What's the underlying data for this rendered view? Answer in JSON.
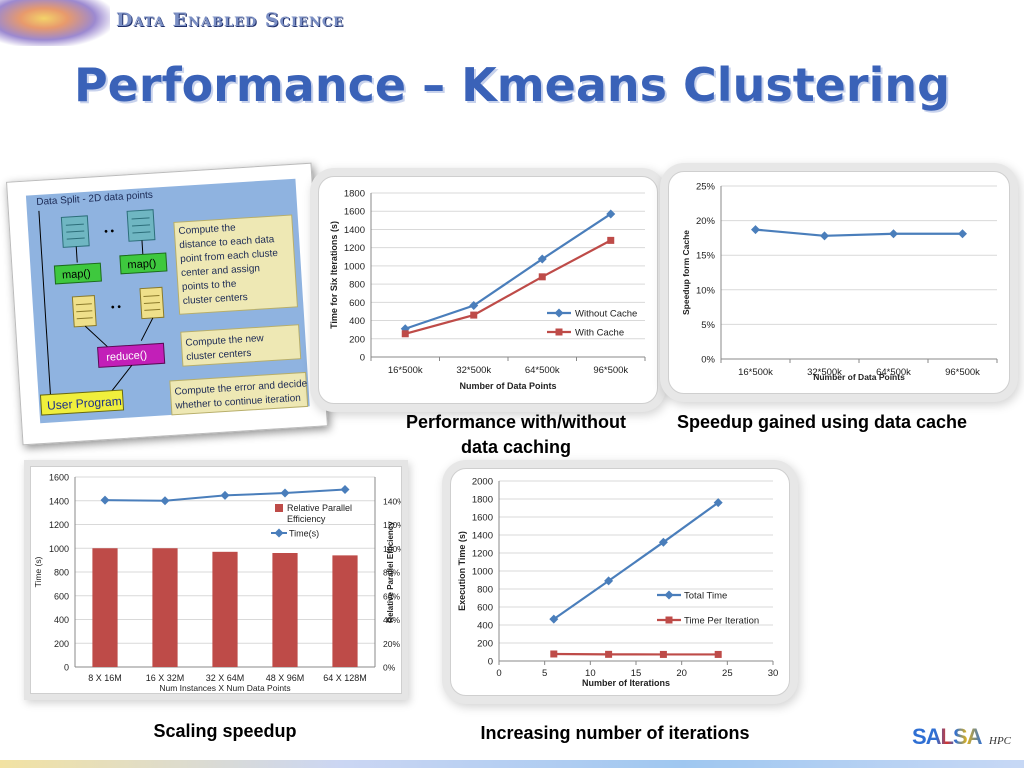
{
  "header": {
    "brand": "Data Enabled Science",
    "title": "Performance – Kmeans Clustering"
  },
  "diagram": {
    "top_label": "Data Split - 2D data points",
    "map_label": "map()",
    "reduce_label": "reduce()",
    "user_program_label": "User Program",
    "ellipsis": "• •",
    "note1": [
      "Compute the",
      "distance to each data",
      "point from each cluste",
      "center and assign",
      "points to the",
      "cluster centers"
    ],
    "note2": [
      "Compute the new",
      "cluster centers"
    ],
    "note3": [
      "Compute the error and decide",
      "whether to continue iteration"
    ]
  },
  "captions": {
    "chart1": [
      "Performance with/without",
      "data caching"
    ],
    "chart2": "Speedup gained using data cache",
    "chart3": "Scaling speedup",
    "chart4": "Increasing number of iterations"
  },
  "logo": {
    "text": "SALSA",
    "suffix": "HPC"
  },
  "colors": {
    "blue_series": "#4a7ebb",
    "red_series": "#be4b48",
    "grid": "#d9d9d9",
    "title_blue": "#3a62b8"
  },
  "chart_data": [
    {
      "id": "cache",
      "type": "line",
      "categories": [
        "16*500k",
        "32*500k",
        "64*500k",
        "96*500k"
      ],
      "series": [
        {
          "name": "Without  Cache",
          "values": [
            310,
            565,
            1075,
            1570
          ],
          "color": "#4a7ebb",
          "marker": "diamond"
        },
        {
          "name": "With Cache",
          "values": [
            255,
            460,
            880,
            1280
          ],
          "color": "#be4b48",
          "marker": "square"
        }
      ],
      "xlabel": "Number of Data Points",
      "ylabel": "Time for Six Iterations (s)",
      "ylim": [
        0,
        1800
      ],
      "yticks": [
        0,
        200,
        400,
        600,
        800,
        1000,
        1200,
        1400,
        1600,
        1800
      ],
      "ytick_labels": [
        "0",
        "200",
        "400",
        "600",
        "800",
        "1000",
        "1200",
        "1400",
        "1600",
        "1800"
      ],
      "legend": "right",
      "grid": true
    },
    {
      "id": "speedup",
      "type": "line",
      "categories": [
        "16*500k",
        "32*500k",
        "64*500k",
        "96*500k"
      ],
      "series": [
        {
          "name": "",
          "values": [
            18.7,
            17.8,
            18.1,
            18.1
          ],
          "color": "#4a7ebb",
          "marker": "diamond"
        }
      ],
      "xlabel": "Number of Data Points",
      "ylabel": "Speedup form Cache",
      "ylim": [
        0,
        25
      ],
      "yticks": [
        0,
        5,
        10,
        15,
        20,
        25
      ],
      "ytick_labels": [
        "0%",
        "5%",
        "10%",
        "15%",
        "20%",
        "25%"
      ],
      "grid": true
    },
    {
      "id": "scaling",
      "type": "bar",
      "categories": [
        "8 X 16M",
        "16 X 32M",
        "32 X 64M",
        "48 X 96M",
        "64 X 128M"
      ],
      "series": [
        {
          "name": "Relative Parallel Efficiency",
          "values": [
            100,
            100,
            97,
            96,
            94
          ],
          "axis": "right",
          "color": "#be4b48",
          "kind": "bar"
        },
        {
          "name": "Time(s)",
          "values": [
            1405,
            1400,
            1445,
            1465,
            1495
          ],
          "axis": "left",
          "color": "#4a7ebb",
          "kind": "line",
          "marker": "diamond"
        }
      ],
      "xlabel": "Num Instances X Num Data Points",
      "ylabel": "Time (s)",
      "y2label": "Relative Parallel Efficiency",
      "ylim": [
        0,
        1600
      ],
      "yticks": [
        0,
        200,
        400,
        600,
        800,
        1000,
        1200,
        1400,
        1600
      ],
      "ytick_labels": [
        "0",
        "200",
        "400",
        "600",
        "800",
        "1000",
        "1200",
        "1400",
        "1600"
      ],
      "y2lim": [
        0,
        160
      ],
      "y2ticks": [
        0,
        20,
        40,
        60,
        80,
        100,
        120,
        140
      ],
      "y2tick_labels": [
        "0%",
        "20%",
        "40%",
        "60%",
        "80%",
        "100%",
        "120%",
        "140%"
      ],
      "legend": "top-right",
      "grid": true
    },
    {
      "id": "iterations",
      "type": "line",
      "x": [
        6,
        12,
        18,
        24
      ],
      "series": [
        {
          "name": "Total Time",
          "values": [
            465,
            890,
            1320,
            1760
          ],
          "color": "#4a7ebb",
          "marker": "diamond"
        },
        {
          "name": "Time Per Iteration",
          "values": [
            78,
            74,
            73,
            73
          ],
          "color": "#be4b48",
          "marker": "square"
        }
      ],
      "xlabel": "Number of Iterations",
      "ylabel": "Execution Time (s)",
      "xlim": [
        0,
        30
      ],
      "xticks": [
        0,
        5,
        10,
        15,
        20,
        25,
        30
      ],
      "xtick_labels": [
        "0",
        "5",
        "10",
        "15",
        "20",
        "25",
        "30"
      ],
      "ylim": [
        0,
        2000
      ],
      "yticks": [
        0,
        200,
        400,
        600,
        800,
        1000,
        1200,
        1400,
        1600,
        1800,
        2000
      ],
      "ytick_labels": [
        "0",
        "200",
        "400",
        "600",
        "800",
        "1000",
        "1200",
        "1400",
        "1600",
        "1800",
        "2000"
      ],
      "legend": "right",
      "grid": true
    }
  ]
}
